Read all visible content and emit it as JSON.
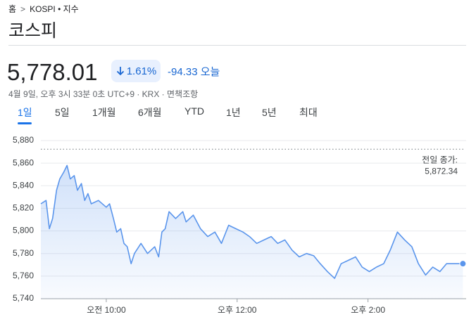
{
  "breadcrumb": {
    "home": "홈",
    "current": "KOSPI • 지수"
  },
  "header": {
    "title": "코스피",
    "price": "5,778.01",
    "change_percent": "1.61%",
    "change_value": "-94.33",
    "change_period": "오늘",
    "meta": "4월 9일, 오후 3시 33분 0초 UTC+9 · KRX · 면책조항"
  },
  "tabs": [
    "1일",
    "5일",
    "1개월",
    "6개월",
    "YTD",
    "1년",
    "5년",
    "최대"
  ],
  "chart_data": {
    "type": "line",
    "x": [
      9.0,
      9.08,
      9.13,
      9.18,
      9.24,
      9.29,
      9.35,
      9.4,
      9.45,
      9.51,
      9.56,
      9.62,
      9.67,
      9.72,
      9.77,
      9.88,
      10.0,
      10.05,
      10.11,
      10.16,
      10.22,
      10.27,
      10.32,
      10.38,
      10.43,
      10.53,
      10.63,
      10.74,
      10.8,
      10.85,
      10.9,
      10.96,
      11.06,
      11.17,
      11.22,
      11.33,
      11.44,
      11.55,
      11.66,
      11.76,
      11.87,
      11.98,
      12.09,
      12.19,
      12.3,
      12.41,
      12.52,
      12.62,
      12.73,
      12.84,
      12.95,
      13.06,
      13.17,
      13.27,
      13.38,
      13.49,
      13.59,
      13.7,
      13.81,
      13.91,
      14.02,
      14.13,
      14.24,
      14.34,
      14.45,
      14.56,
      14.67,
      14.77,
      14.88,
      14.99,
      15.1,
      15.2,
      15.31,
      15.45
    ],
    "series": [
      {
        "name": "코스피",
        "color": "#5a95ec",
        "values": [
          5824,
          5827,
          5802,
          5811,
          5836,
          5846,
          5852,
          5858,
          5846,
          5849,
          5836,
          5842,
          5827,
          5833,
          5824,
          5827,
          5821,
          5824,
          5811,
          5799,
          5802,
          5789,
          5786,
          5771,
          5780,
          5789,
          5780,
          5786,
          5777,
          5799,
          5802,
          5817,
          5811,
          5817,
          5808,
          5814,
          5802,
          5795,
          5799,
          5789,
          5805,
          5802,
          5799,
          5795,
          5789,
          5792,
          5795,
          5789,
          5792,
          5783,
          5777,
          5780,
          5778,
          5771,
          5764,
          5758,
          5771,
          5774,
          5777,
          5768,
          5764,
          5768,
          5771,
          5783,
          5799,
          5792,
          5786,
          5771,
          5761,
          5768,
          5764,
          5771,
          5771,
          5771
        ]
      }
    ],
    "xlim": [
      9,
      15.5
    ],
    "xticks": [
      {
        "value": 10,
        "label": "오전 10:00"
      },
      {
        "value": 12,
        "label": "오후 12:00"
      },
      {
        "value": 14,
        "label": "오후 2:00"
      }
    ],
    "ylim": [
      5740,
      5880
    ],
    "yticks": [
      {
        "value": 5740,
        "label": "5,740"
      },
      {
        "value": 5760,
        "label": "5,760"
      },
      {
        "value": 5780,
        "label": "5,780"
      },
      {
        "value": 5800,
        "label": "5,800"
      },
      {
        "value": 5820,
        "label": "5,820"
      },
      {
        "value": 5840,
        "label": "5,840"
      },
      {
        "value": 5860,
        "label": "5,860"
      },
      {
        "value": 5880,
        "label": "5,880"
      }
    ],
    "grid": true,
    "previous_close_title": "전일 종가:",
    "previous_close": {
      "value": 5872.34,
      "label": "5,872.34"
    }
  }
}
